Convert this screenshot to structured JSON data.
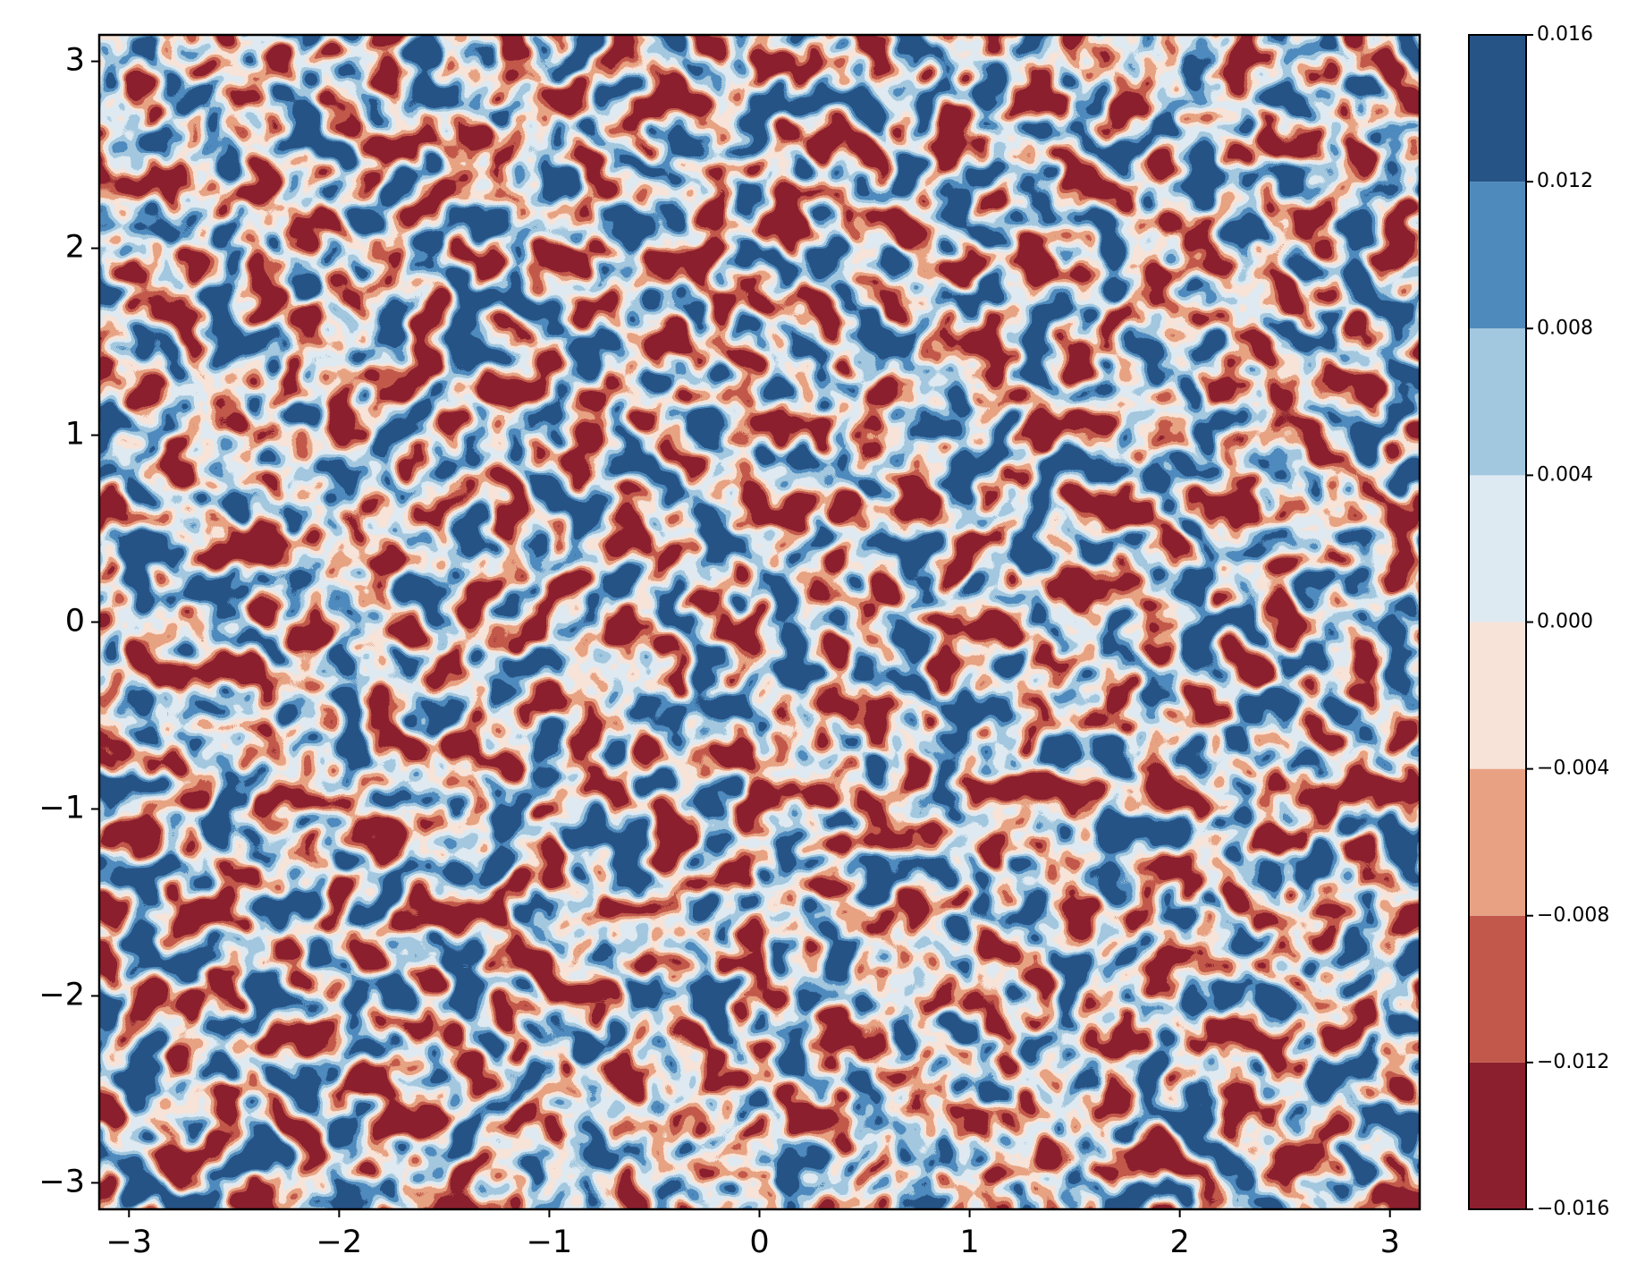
{
  "chart_data": {
    "type": "contour",
    "xlim": [
      -3.14159,
      3.14159
    ],
    "ylim": [
      -3.14159,
      3.14159
    ],
    "xticks": [
      {
        "value": -3,
        "label": "−3"
      },
      {
        "value": -2,
        "label": "−2"
      },
      {
        "value": -1,
        "label": "−1"
      },
      0,
      1,
      2,
      3
    ],
    "yticks": [
      {
        "value": -3,
        "label": "−3"
      },
      {
        "value": -2,
        "label": "−2"
      },
      {
        "value": -1,
        "label": "−1"
      },
      0,
      1,
      2,
      3
    ],
    "colorbar_ticks": [
      {
        "value": -0.016,
        "label": "−0.016"
      },
      {
        "value": -0.012,
        "label": "−0.012"
      },
      {
        "value": -0.008,
        "label": "−0.008"
      },
      {
        "value": -0.004,
        "label": "−0.004"
      },
      {
        "value": 0,
        "label": "0.000"
      },
      0.004,
      0.008,
      0.012,
      0.016
    ],
    "colors": [
      "#8c1f2d",
      "#c2584b",
      "#e8a283",
      "#f8e3d8",
      "#deeaf2",
      "#a2c8df",
      "#4f8abd",
      "#275487"
    ]
  }
}
